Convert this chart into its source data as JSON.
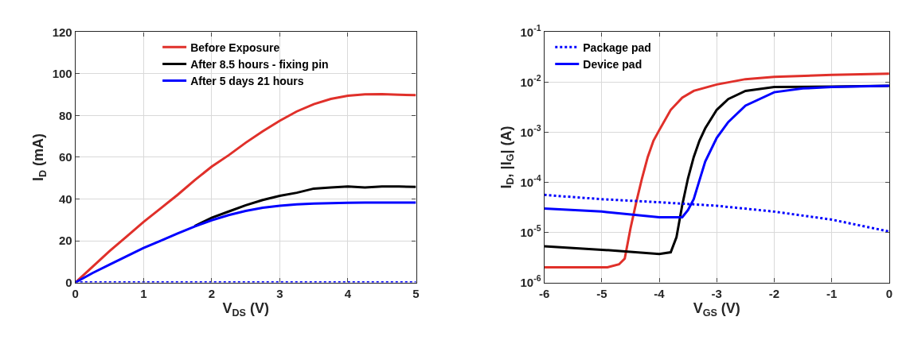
{
  "chart_data": [
    {
      "type": "line",
      "xlabel": "V$_{DS}$ (V)",
      "ylabel": "I$_{D}$ (mA)",
      "xlim": [
        0,
        5
      ],
      "xticks": [
        0,
        1,
        2,
        3,
        4,
        5
      ],
      "ylim": [
        0,
        120
      ],
      "yticks": [
        0,
        20,
        40,
        60,
        80,
        100,
        120
      ],
      "grid": true,
      "legend": "top",
      "marker": "none",
      "x": [
        0,
        0.25,
        0.5,
        0.75,
        1,
        1.25,
        1.5,
        1.75,
        2,
        2.25,
        2.5,
        2.75,
        3,
        3.25,
        3.5,
        3.75,
        4,
        4.25,
        4.5,
        4.75,
        5
      ],
      "series": [
        {
          "name": "Before Exposure",
          "color": "#e0302a",
          "line_style": "solid",
          "values": [
            0,
            7.5,
            15,
            22,
            29,
            35.5,
            42,
            49,
            55.5,
            61,
            67,
            72.5,
            77.5,
            82,
            85.5,
            88,
            89.5,
            90.2,
            90.3,
            90,
            89.8
          ]
        },
        {
          "name": "After 8.5 hours - fixing pin",
          "color": "#000000",
          "line_style": "solid",
          "values": [
            null,
            null,
            null,
            null,
            null,
            null,
            null,
            27,
            31,
            34,
            37,
            39.5,
            41.5,
            43,
            45,
            45.5,
            46,
            45.5,
            46,
            46,
            45.8
          ]
        },
        {
          "name": "After 5 days 21 hours",
          "color": "#0000ff",
          "line_style": "solid",
          "values": [
            0,
            4.5,
            8.5,
            12.5,
            16.5,
            20,
            23.5,
            26.8,
            29.8,
            32.3,
            34.3,
            35.8,
            36.8,
            37.4,
            37.8,
            38,
            38.2,
            38.3,
            38.3,
            38.3,
            38.3
          ]
        },
        {
          "color": "#0000ff",
          "line_style": "dotted",
          "x": [
            0,
            5
          ],
          "values": [
            0,
            0
          ]
        }
      ]
    },
    {
      "type": "line",
      "xlabel": "V$_{GS}$ (V)",
      "ylabel": "I$_{D}$, |I$_{G}$| (A)",
      "log": "y",
      "xlim": [
        -6,
        0
      ],
      "xticks": [
        -6,
        -5,
        -4,
        -3,
        -2,
        -1,
        0
      ],
      "ylim": [
        1e-06,
        0.1
      ],
      "yticks": [
        {
          "value": 1e-06,
          "label": "10$^{-6}$"
        },
        {
          "value": 1e-05,
          "label": "10$^{-5}$"
        },
        {
          "value": 0.0001,
          "label": "10$^{-4}$"
        },
        {
          "value": 0.001,
          "label": "10$^{-3}$"
        },
        {
          "value": 0.01,
          "label": "10$^{-2}$"
        },
        {
          "value": 0.1,
          "label": "10$^{-1}$"
        }
      ],
      "grid": true,
      "legend": "top left",
      "marker": "none",
      "series": [
        {
          "color": "#e0302a",
          "line_style": "solid",
          "x": [
            -6,
            -5.5,
            -5,
            -4.9,
            -4.7,
            -4.6,
            -4.5,
            -4.4,
            -4.3,
            -4.2,
            -4.1,
            -4,
            -3.8,
            -3.6,
            -3.4,
            -3,
            -2.5,
            -2,
            -1,
            0
          ],
          "values": [
            2e-06,
            2e-06,
            2e-06,
            2e-06,
            2.3e-06,
            3e-06,
            1.2e-05,
            4e-05,
            0.00012,
            0.00032,
            0.00068,
            0.0011,
            0.0028,
            0.0049,
            0.0067,
            0.009,
            0.0115,
            0.0128,
            0.014,
            0.0148
          ]
        },
        {
          "color": "#000000",
          "line_style": "solid",
          "x": [
            -6,
            -5,
            -4,
            -3.8,
            -3.7,
            -3.6,
            -3.5,
            -3.4,
            -3.3,
            -3.2,
            -3,
            -2.8,
            -2.5,
            -2,
            -1,
            0
          ],
          "values": [
            5.3e-06,
            4.5e-06,
            3.7e-06,
            4e-06,
            8e-06,
            3.5e-05,
            0.00012,
            0.00032,
            0.00068,
            0.0012,
            0.0028,
            0.0046,
            0.0067,
            0.008,
            0.0082,
            0.0085
          ]
        },
        {
          "name": "Package pad",
          "color": "#0000ff",
          "line_style": "dotted",
          "x": [
            -6,
            -5,
            -4,
            -3,
            -2,
            -1,
            0
          ],
          "values": [
            5.6e-05,
            4.6e-05,
            4e-05,
            3.4e-05,
            2.6e-05,
            1.8e-05,
            1.04e-05
          ]
        },
        {
          "name": "Device pad",
          "color": "#0000ff",
          "line_style": "solid",
          "x": [
            -6,
            -5,
            -4,
            -3.6,
            -3.5,
            -3.4,
            -3.3,
            -3.2,
            -3,
            -2.8,
            -2.5,
            -2,
            -1.5,
            -1,
            0
          ],
          "values": [
            3e-05,
            2.6e-05,
            2e-05,
            2e-05,
            2.8e-05,
            4.6e-05,
            0.00011,
            0.00026,
            0.00077,
            0.0016,
            0.0034,
            0.0063,
            0.0075,
            0.008,
            0.0085
          ]
        }
      ]
    }
  ]
}
